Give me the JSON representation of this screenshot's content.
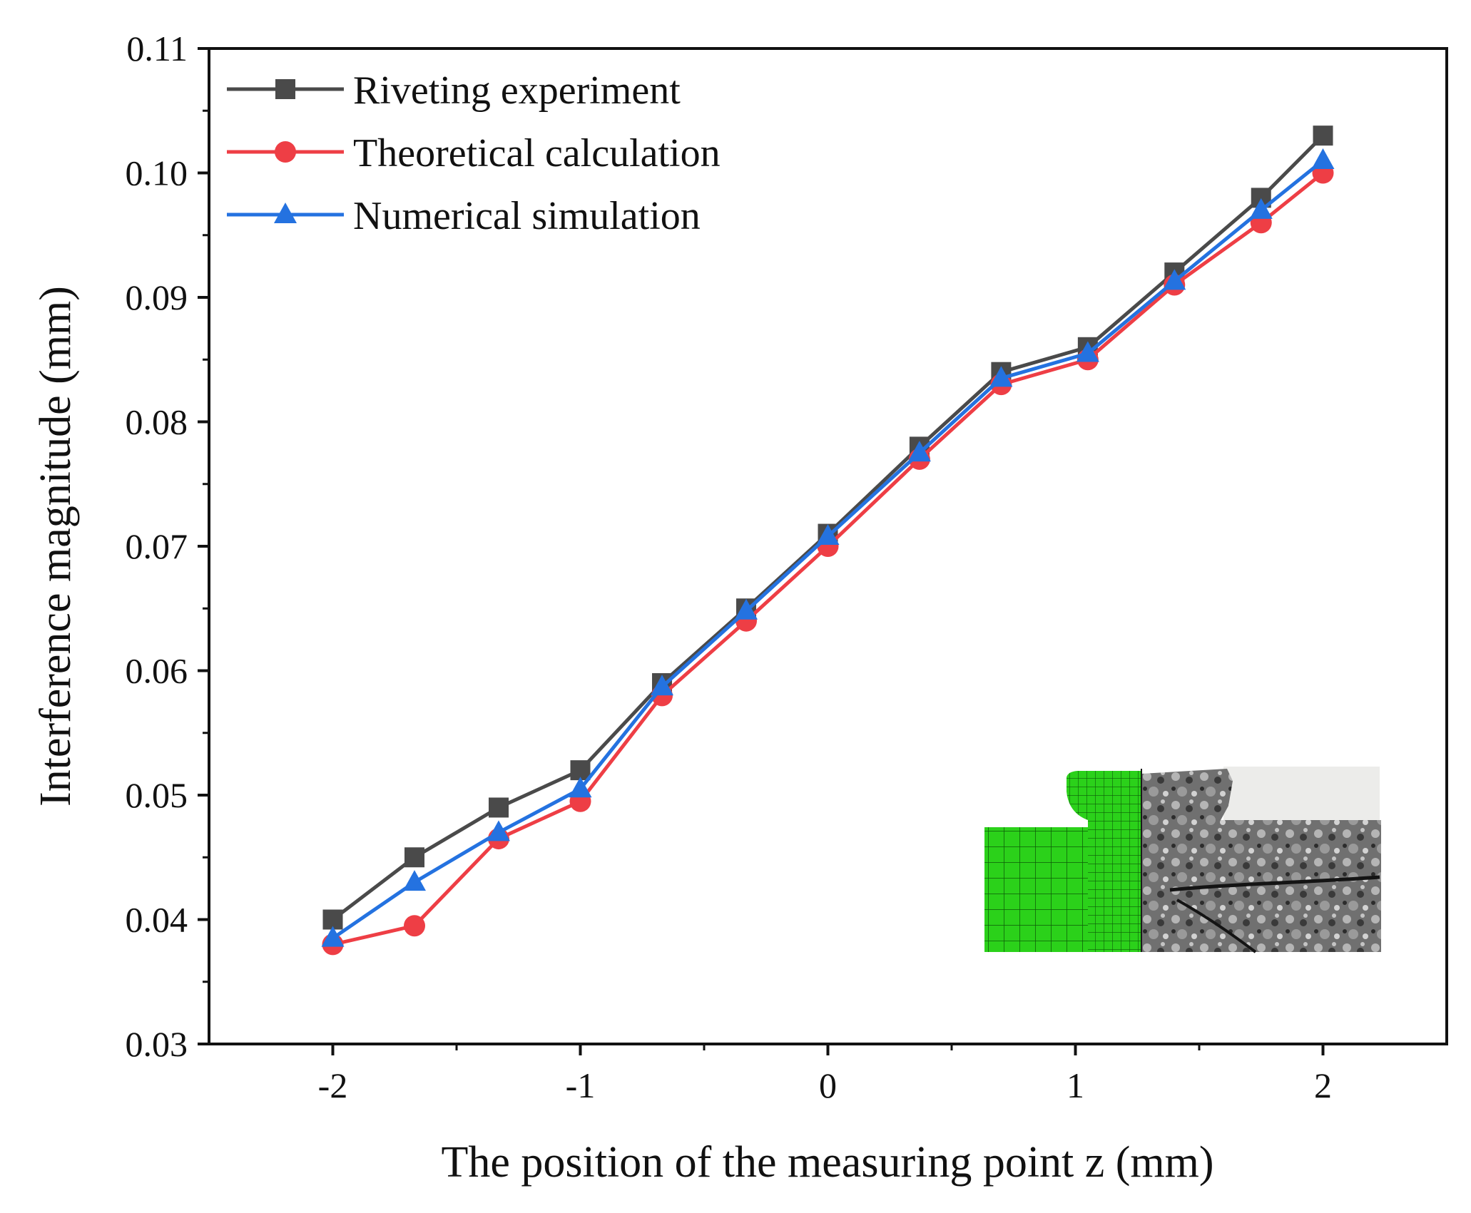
{
  "chart_data": {
    "type": "line",
    "title": "",
    "xlabel": "The position of the measuring point z (mm)",
    "ylabel": "Interference magnitude (mm)",
    "xlim": [
      -2.5,
      2.5
    ],
    "ylim": [
      0.03,
      0.11
    ],
    "x_ticks": [
      -2,
      -1,
      0,
      1,
      2
    ],
    "x_tick_labels": [
      "-2",
      "-1",
      "0",
      "1",
      "2"
    ],
    "y_ticks": [
      0.03,
      0.04,
      0.05,
      0.06,
      0.07,
      0.08,
      0.09,
      0.1,
      0.11
    ],
    "y_tick_labels": [
      "0.03",
      "0.04",
      "0.05",
      "0.06",
      "0.07",
      "0.08",
      "0.09",
      "0.10",
      "0.11"
    ],
    "grid": false,
    "legend_position": "top-left",
    "x": [
      -2,
      -1.67,
      -1.33,
      -1,
      -0.67,
      -0.33,
      0,
      0.37,
      0.7,
      1.05,
      1.4,
      1.75,
      2
    ],
    "series": [
      {
        "name": "Riveting experiment",
        "color": "#4a4a4a",
        "marker": "square",
        "values": [
          0.04,
          0.045,
          0.049,
          0.052,
          0.059,
          0.065,
          0.071,
          0.078,
          0.084,
          0.086,
          0.092,
          0.098,
          0.103
        ]
      },
      {
        "name": "Theoretical calculation",
        "color": "#ee3e45",
        "marker": "circle",
        "values": [
          0.038,
          0.0395,
          0.0465,
          0.0495,
          0.058,
          0.064,
          0.07,
          0.077,
          0.083,
          0.085,
          0.091,
          0.096,
          0.1
        ]
      },
      {
        "name": "Numerical simulation",
        "color": "#2472e0",
        "marker": "triangle",
        "values": [
          0.0385,
          0.043,
          0.047,
          0.0505,
          0.0587,
          0.0648,
          0.0708,
          0.0775,
          0.0835,
          0.0855,
          0.0913,
          0.097,
          0.101
        ]
      }
    ],
    "inset": {
      "content": "finite-element-mesh-and-micrograph",
      "mesh_color": "#2bd11a",
      "photo_color": "#6f6f6f"
    }
  }
}
